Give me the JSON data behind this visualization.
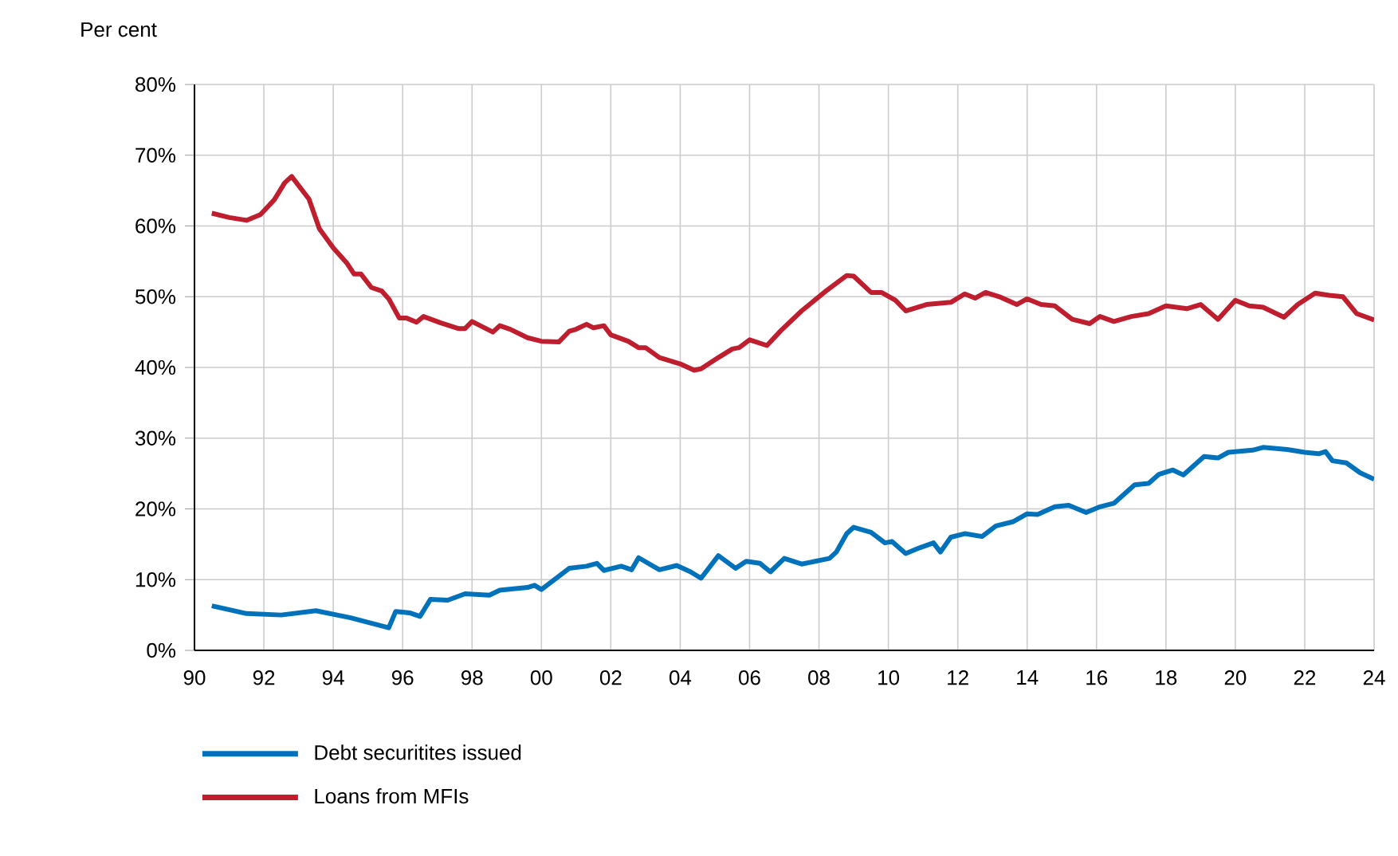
{
  "chart_data": {
    "type": "line",
    "ylabel": "Per cent",
    "xlim": [
      1990,
      2024
    ],
    "ylim": [
      0,
      80
    ],
    "xticks": [
      {
        "value": 1990,
        "label": "90"
      },
      {
        "value": 1992,
        "label": "92"
      },
      {
        "value": 1994,
        "label": "94"
      },
      {
        "value": 1996,
        "label": "96"
      },
      {
        "value": 1998,
        "label": "98"
      },
      {
        "value": 2000,
        "label": "00"
      },
      {
        "value": 2002,
        "label": "02"
      },
      {
        "value": 2004,
        "label": "04"
      },
      {
        "value": 2006,
        "label": "06"
      },
      {
        "value": 2008,
        "label": "08"
      },
      {
        "value": 2010,
        "label": "10"
      },
      {
        "value": 2012,
        "label": "12"
      },
      {
        "value": 2014,
        "label": "14"
      },
      {
        "value": 2016,
        "label": "16"
      },
      {
        "value": 2018,
        "label": "18"
      },
      {
        "value": 2020,
        "label": "20"
      },
      {
        "value": 2022,
        "label": "22"
      },
      {
        "value": 2024,
        "label": "24"
      }
    ],
    "yticks": [
      {
        "value": 0,
        "label": "0%"
      },
      {
        "value": 10,
        "label": "10%"
      },
      {
        "value": 20,
        "label": "20%"
      },
      {
        "value": 30,
        "label": "30%"
      },
      {
        "value": 40,
        "label": "40%"
      },
      {
        "value": 50,
        "label": "50%"
      },
      {
        "value": 60,
        "label": "60%"
      },
      {
        "value": 70,
        "label": "70%"
      },
      {
        "value": 80,
        "label": "80%"
      }
    ],
    "grid": true,
    "legend": "bottom",
    "line_style": "solid",
    "series": [
      {
        "name": "Debt securitites issued",
        "color": "#0072bb",
        "x": [
          1990.5,
          1991.5,
          1992.5,
          1993.5,
          1994.5,
          1995.6,
          1995.8,
          1996.2,
          1996.5,
          1996.8,
          1997.3,
          1997.8,
          1998.5,
          1998.8,
          1999.6,
          1999.8,
          2000.0,
          2000.8,
          2001.3,
          2001.6,
          2001.8,
          2002.3,
          2002.6,
          2002.8,
          2003.4,
          2003.9,
          2004.3,
          2004.6,
          2005.1,
          2005.6,
          2005.9,
          2006.3,
          2006.6,
          2007.0,
          2007.5,
          2008.3,
          2008.5,
          2008.8,
          2009.0,
          2009.5,
          2009.9,
          2010.1,
          2010.5,
          2010.9,
          2011.3,
          2011.5,
          2011.8,
          2012.2,
          2012.7,
          2013.1,
          2013.6,
          2014.0,
          2014.3,
          2014.8,
          2015.2,
          2015.7,
          2016.1,
          2016.5,
          2017.1,
          2017.5,
          2017.8,
          2018.2,
          2018.5,
          2019.1,
          2019.5,
          2019.8,
          2020.5,
          2020.8,
          2021.5,
          2022.0,
          2022.4,
          2022.6,
          2022.8,
          2023.2,
          2023.6,
          2024.0
        ],
        "values": [
          6.3,
          5.2,
          5.0,
          5.6,
          4.6,
          3.2,
          5.5,
          5.3,
          4.8,
          7.2,
          7.1,
          8.0,
          7.8,
          8.5,
          8.9,
          9.2,
          8.6,
          11.6,
          11.9,
          12.3,
          11.3,
          11.9,
          11.4,
          13.1,
          11.4,
          12.0,
          11.1,
          10.2,
          13.4,
          11.6,
          12.6,
          12.3,
          11.1,
          13.0,
          12.2,
          13.0,
          13.9,
          16.5,
          17.4,
          16.7,
          15.2,
          15.4,
          13.7,
          14.5,
          15.2,
          13.9,
          16.0,
          16.5,
          16.1,
          17.6,
          18.2,
          19.3,
          19.2,
          20.3,
          20.5,
          19.5,
          20.3,
          20.8,
          23.4,
          23.6,
          24.9,
          25.5,
          24.8,
          27.4,
          27.2,
          28.0,
          28.3,
          28.7,
          28.4,
          28.0,
          27.8,
          28.1,
          26.8,
          26.5,
          25.1,
          24.2
        ]
      },
      {
        "name": "Loans from MFIs",
        "color": "#be1e2d",
        "x": [
          1990.5,
          1991.0,
          1991.5,
          1991.9,
          1992.3,
          1992.6,
          1992.8,
          1993.3,
          1993.6,
          1994.0,
          1994.4,
          1994.6,
          1994.8,
          1995.1,
          1995.4,
          1995.6,
          1995.9,
          1996.1,
          1996.4,
          1996.6,
          1997.1,
          1997.6,
          1997.8,
          1998.0,
          1998.6,
          1998.8,
          1999.1,
          1999.6,
          2000.0,
          2000.5,
          2000.8,
          2001.0,
          2001.3,
          2001.5,
          2001.8,
          2002.0,
          2002.5,
          2002.8,
          2003.0,
          2003.4,
          2004.0,
          2004.4,
          2004.6,
          2005.1,
          2005.5,
          2005.7,
          2006.0,
          2006.5,
          2006.9,
          2007.5,
          2008.2,
          2008.8,
          2009.0,
          2009.5,
          2009.8,
          2010.2,
          2010.5,
          2011.1,
          2011.8,
          2012.2,
          2012.5,
          2012.8,
          2013.2,
          2013.7,
          2014.0,
          2014.4,
          2014.8,
          2015.3,
          2015.8,
          2016.1,
          2016.5,
          2017.0,
          2017.5,
          2018.0,
          2018.6,
          2019.0,
          2019.5,
          2020.0,
          2020.4,
          2020.8,
          2021.4,
          2021.8,
          2022.3,
          2022.7,
          2023.1,
          2023.5,
          2024.0
        ],
        "values": [
          61.8,
          61.2,
          60.8,
          61.6,
          63.7,
          66.1,
          67.0,
          63.8,
          59.6,
          56.9,
          54.7,
          53.2,
          53.2,
          51.3,
          50.8,
          49.7,
          47.0,
          47.0,
          46.4,
          47.2,
          46.3,
          45.5,
          45.5,
          46.5,
          45.0,
          45.9,
          45.4,
          44.2,
          43.7,
          43.6,
          45.1,
          45.4,
          46.1,
          45.6,
          45.9,
          44.6,
          43.7,
          42.8,
          42.8,
          41.4,
          40.5,
          39.6,
          39.8,
          41.4,
          42.6,
          42.8,
          43.9,
          43.1,
          45.2,
          48.0,
          50.8,
          53.0,
          52.9,
          50.6,
          50.6,
          49.5,
          48.0,
          48.9,
          49.2,
          50.4,
          49.8,
          50.6,
          50.0,
          48.9,
          49.7,
          48.9,
          48.7,
          46.8,
          46.2,
          47.2,
          46.5,
          47.2,
          47.6,
          48.7,
          48.3,
          48.9,
          46.8,
          49.5,
          48.7,
          48.5,
          47.1,
          48.9,
          50.5,
          50.2,
          50.0,
          47.6,
          46.7
        ]
      }
    ]
  }
}
